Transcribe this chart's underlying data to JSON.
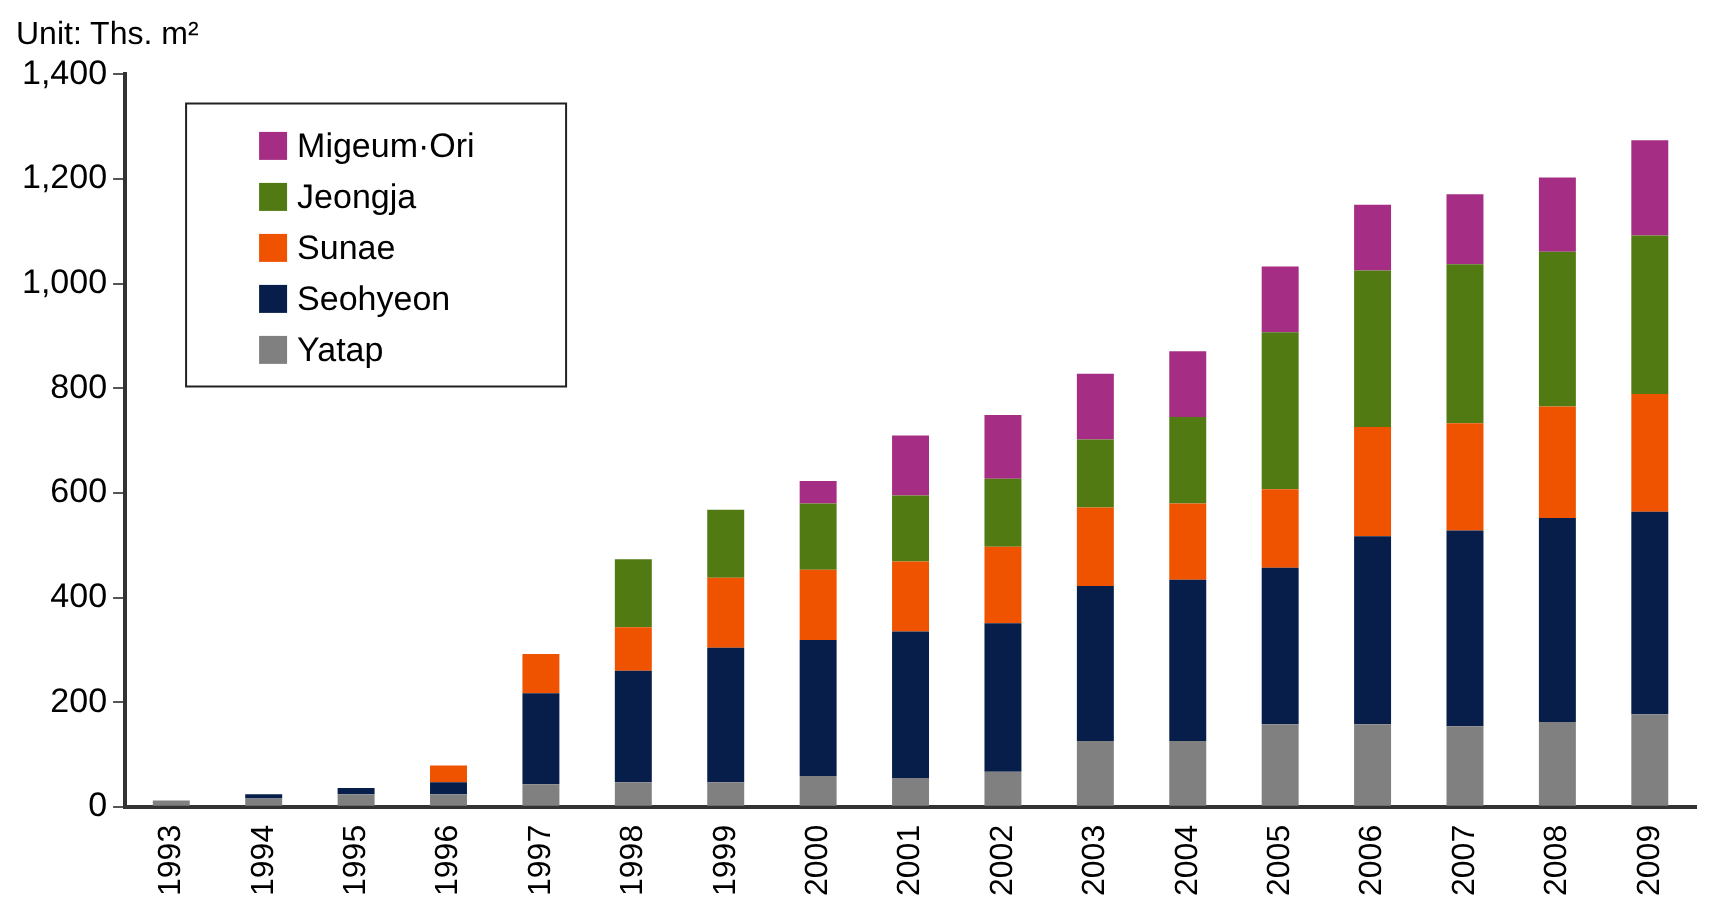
{
  "chart_data": {
    "type": "bar",
    "title": "Unit: Ths. m²",
    "stacked": true,
    "legend": "top left",
    "grid": false,
    "categories": [
      "1993",
      "1994",
      "1995",
      "1996",
      "1997",
      "1998",
      "1999",
      "2000",
      "2001",
      "2002",
      "2003",
      "2004",
      "2005",
      "2006",
      "2007",
      "2008",
      "2009"
    ],
    "ylim": [
      0,
      1400
    ],
    "yticks": [
      {
        "value": 0,
        "label": "0"
      },
      {
        "value": 200,
        "label": "200"
      },
      {
        "value": 400,
        "label": "400"
      },
      {
        "value": 600,
        "label": "600"
      },
      {
        "value": 800,
        "label": "800"
      },
      {
        "value": 1000,
        "label": "1,000"
      },
      {
        "value": 1200,
        "label": "1,200"
      },
      {
        "value": 1400,
        "label": "1,400"
      }
    ],
    "series": [
      {
        "name": "Yatap",
        "color": "#808080",
        "values": [
          12,
          16,
          24,
          24,
          43,
          47,
          47,
          59,
          55,
          67,
          126,
          126,
          158,
          158,
          154,
          162,
          177
        ]
      },
      {
        "name": "Seohyeon",
        "color": "#071e4a",
        "values": [
          null,
          8,
          12,
          23,
          174,
          213,
          257,
          260,
          280,
          284,
          296,
          308,
          299,
          359,
          374,
          390,
          387
        ]
      },
      {
        "name": "Sunae",
        "color": "#ef5300",
        "values": [
          null,
          null,
          null,
          32,
          75,
          83,
          134,
          134,
          134,
          146,
          150,
          146,
          150,
          209,
          205,
          213,
          225
        ]
      },
      {
        "name": "Jeongja",
        "color": "#517a13",
        "values": [
          null,
          null,
          null,
          null,
          null,
          130,
          130,
          127,
          126,
          130,
          130,
          165,
          300,
          299,
          304,
          296,
          303
        ]
      },
      {
        "name": "Migeum·Ori",
        "color": "#a52e84",
        "values": [
          null,
          null,
          null,
          null,
          null,
          null,
          null,
          43,
          115,
          122,
          126,
          126,
          126,
          126,
          134,
          142,
          182
        ]
      }
    ]
  }
}
